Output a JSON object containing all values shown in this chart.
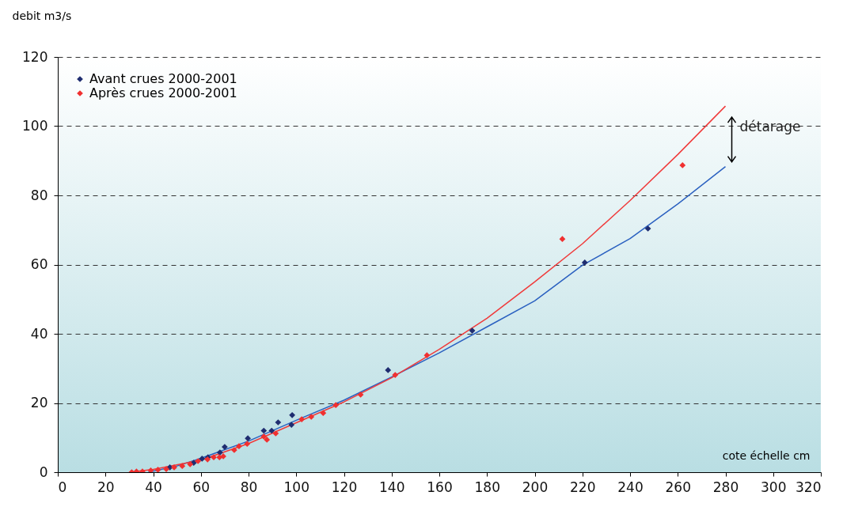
{
  "chart_data": {
    "type": "scatter",
    "xlabel": "cote échelle cm",
    "ylabel": "debit m3/s",
    "xlim": [
      0,
      320
    ],
    "xticks": [
      0,
      20,
      40,
      60,
      80,
      100,
      120,
      140,
      160,
      180,
      200,
      220,
      240,
      260,
      280,
      300,
      320
    ],
    "ylim": [
      0,
      120
    ],
    "yticks": [
      0,
      20,
      40,
      60,
      80,
      100,
      120
    ],
    "grid": "y",
    "legend": "top left",
    "marker": "diamond",
    "annotations": [
      "détarage"
    ],
    "series": [
      {
        "name": "Avant crues 2000-2001",
        "color": "#1f2d70",
        "x": [
          47,
          57,
          60.5,
          63,
          68,
          70,
          79.7,
          86.4,
          89.7,
          92.4,
          98,
          98.3,
          138.5,
          173.8,
          221,
          247.5
        ],
        "values": [
          1.4,
          2.7,
          3.9,
          4.3,
          5.7,
          7.3,
          9.8,
          12,
          12,
          14.4,
          13.7,
          16.5,
          29.5,
          40.9,
          60.6,
          70.4
        ]
      },
      {
        "name": "Après crues 2000-2001",
        "color": "#f03030",
        "x": [
          31,
          33,
          35.5,
          39,
          42,
          45.5,
          48.8,
          52.2,
          55.5,
          58.8,
          62.8,
          65.4,
          67.8,
          69.4,
          74,
          76,
          79.4,
          86.4,
          87.7,
          91.4,
          102.3,
          106.3,
          111.3,
          116.6,
          127,
          141.5,
          154.8,
          211.6,
          262
        ],
        "values": [
          0,
          0.2,
          0.2,
          0.5,
          0.7,
          0.9,
          1.4,
          1.8,
          2.3,
          3.2,
          3.7,
          4.3,
          4.3,
          4.6,
          6.4,
          7.5,
          8.2,
          10.3,
          9.4,
          11.2,
          15.3,
          16,
          17.1,
          19.4,
          22.4,
          28.1,
          33.8,
          67.4,
          88.7
        ]
      },
      {
        "type": "line",
        "marker": "none",
        "color": "#2a60c0",
        "x": [
          38,
          50,
          60,
          80,
          100,
          120,
          140,
          160,
          180,
          200,
          220,
          240,
          260,
          280
        ],
        "values": [
          0,
          1.8,
          4,
          9,
          15,
          20.8,
          27.5,
          34.5,
          42,
          49.5,
          59.8,
          67.5,
          77.5,
          88.3
        ]
      },
      {
        "type": "line",
        "marker": "none",
        "color": "#f03a3a",
        "x": [
          30,
          40,
          60,
          80,
          100,
          120,
          140,
          160,
          180,
          200,
          220,
          240,
          260,
          280
        ],
        "values": [
          0,
          0.8,
          3.5,
          8.3,
          14.3,
          20.3,
          27.3,
          35.5,
          44.5,
          55,
          66,
          78.5,
          91.8,
          105.8
        ]
      }
    ]
  }
}
